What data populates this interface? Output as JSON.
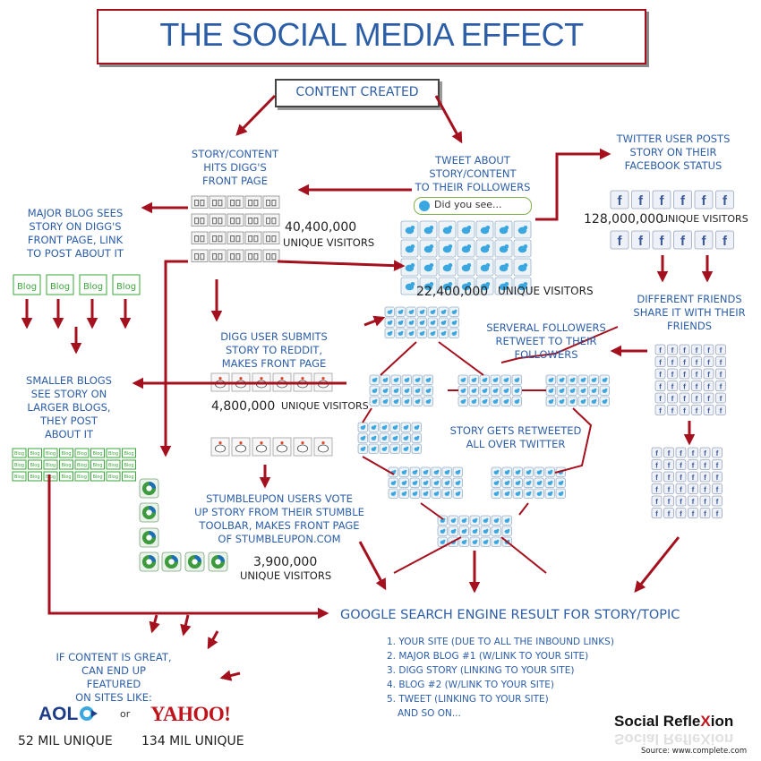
{
  "title": "THE SOCIAL MEDIA EFFECT",
  "content_created": "CONTENT CREATED",
  "digg": {
    "label": "STORY/CONTENT\nHITS DIGG'S\nFRONT PAGE",
    "count": "40,400,000",
    "unit": "UNIQUE VISITORS"
  },
  "tweet": {
    "label": "TWEET ABOUT\nSTORY/CONTENT\nTO THEIR FOLLOWERS",
    "box_text": "Did you see...",
    "count": "22,400,000",
    "unit": "UNIQUE VISITORS"
  },
  "facebook": {
    "label": "TWITTER USER POSTS\nSTORY ON THEIR\nFACEBOOK STATUS",
    "count": "128,000,000",
    "unit": "UNIQUE VISITORS",
    "friends": "DIFFERENT FRIENDS\nSHARE IT WITH THEIR\nFRIENDS"
  },
  "major_blog": "MAJOR BLOG SEES\nSTORY ON DIGG'S\nFRONT PAGE, LINK\nTO POST ABOUT IT",
  "blog_label": "Blog",
  "smaller_blogs": "SMALLER BLOGS\nSEE STORY ON\nLARGER BLOGS,\nTHEY POST\nABOUT IT",
  "reddit": {
    "label": "DIGG USER SUBMITS\nSTORY TO REDDIT,\nMAKES FRONT PAGE",
    "count": "4,800,000",
    "unit": "UNIQUE VISITORS"
  },
  "followers": "SERVERAL FOLLOWERS\nRETWEET TO THEIR\nFOLLOWERS",
  "retweeted": "STORY GETS RETWEETED\nALL OVER TWITTER",
  "stumble": {
    "label": "STUMBLEUPON USERS VOTE\nUP STORY FROM THEIR STUMBLE\nTOOLBAR, MAKES FRONT PAGE\nOF STUMBLEUPON.COM",
    "count": "3,900,000",
    "unit": "UNIQUE VISITORS"
  },
  "google": {
    "heading": "GOOGLE SEARCH ENGINE RESULT FOR STORY/TOPIC",
    "results": [
      "1. YOUR SITE (DUE TO ALL THE INBOUND LINKS)",
      "2. MAJOR BLOG #1 (W/LINK TO YOUR SITE)",
      "3. DIGG STORY (LINKING TO YOUR SITE)",
      "4. BLOG #2 (W/LINK TO YOUR SITE)",
      "5. TWEET (LINKING TO YOUR SITE)",
      "AND SO ON..."
    ]
  },
  "featured": "IF CONTENT IS GREAT,\nCAN END UP FEATURED\nON SITES LIKE:",
  "aol": {
    "logo": "AOL",
    "unique": "52 MIL UNIQUE"
  },
  "or_text": "or",
  "yahoo": {
    "logo": "YAHOO!",
    "unique": "134 MIL UNIQUE"
  },
  "brand": {
    "part1": "Social Refle",
    "x": "X",
    "part2": "ion"
  },
  "source": "Source:  www.complete.com",
  "colors": {
    "arrow": "#a4101d",
    "text_blue": "#2c5ea7",
    "twitter": "#3aa7e0",
    "facebook": "#3b5998",
    "blog_green": "#3aa63a",
    "stumble_green": "#3d9a3d",
    "stumble_blue": "#1c6fb5"
  }
}
